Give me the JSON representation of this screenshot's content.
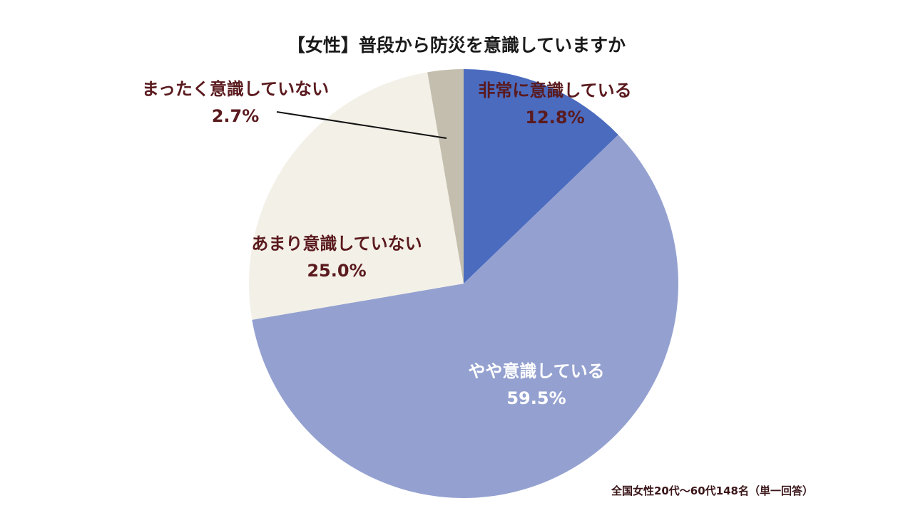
{
  "chart_data": {
    "type": "pie",
    "title": "【女性】普段から防災を意識していますか",
    "slices": [
      {
        "label": "非常に意識している",
        "value": 12.8,
        "display": "12.8%",
        "color": "#4b6bbf",
        "text_color": "#5a1a1e"
      },
      {
        "label": "やや意識している",
        "value": 59.5,
        "display": "59.5%",
        "color": "#94a1d0",
        "text_color": "#ffffff"
      },
      {
        "label": "あまり意識していない",
        "value": 25.0,
        "display": "25.0%",
        "color": "#f3f0e7",
        "text_color": "#5a1a1e"
      },
      {
        "label": "まったく意識していない",
        "value": 2.7,
        "display": "2.7%",
        "color": "#c4beae",
        "text_color": "#5a1a1e"
      }
    ],
    "start_angle": "top",
    "direction": "clockwise",
    "note": "全国女性20代～60代148名（単一回答）"
  }
}
